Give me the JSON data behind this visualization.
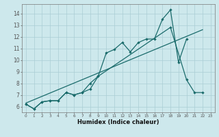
{
  "xlabel": "Humidex (Indice chaleur)",
  "bg_color": "#cde8ec",
  "grid_color": "#aacdd4",
  "line_color": "#1a6b6b",
  "xlim": [
    -0.5,
    23.5
  ],
  "ylim": [
    5.5,
    14.8
  ],
  "yticks": [
    6,
    7,
    8,
    9,
    10,
    11,
    12,
    13,
    14
  ],
  "xticks": [
    0,
    1,
    2,
    3,
    4,
    5,
    6,
    7,
    8,
    9,
    10,
    11,
    12,
    13,
    14,
    15,
    16,
    17,
    18,
    19,
    20,
    21,
    22,
    23
  ],
  "series1_x": [
    0,
    1,
    2,
    3,
    4,
    5,
    6,
    7,
    8,
    9,
    10,
    11,
    12,
    13,
    14,
    15,
    16,
    17,
    18,
    19,
    20
  ],
  "series1_y": [
    6.2,
    5.8,
    6.4,
    6.5,
    6.5,
    7.2,
    7.0,
    7.2,
    7.5,
    8.6,
    10.6,
    10.9,
    11.5,
    10.7,
    11.5,
    11.8,
    11.8,
    13.5,
    14.3,
    9.8,
    11.8
  ],
  "series2_x": [
    0,
    1,
    2,
    3,
    4,
    5,
    6,
    7,
    8,
    9,
    18,
    20,
    21,
    22
  ],
  "series2_y": [
    6.2,
    5.8,
    6.4,
    6.5,
    6.5,
    7.2,
    7.0,
    7.2,
    8.0,
    8.6,
    12.8,
    8.3,
    7.2,
    7.2
  ],
  "series3_x": [
    0,
    22
  ],
  "series3_y": [
    6.3,
    12.6
  ]
}
